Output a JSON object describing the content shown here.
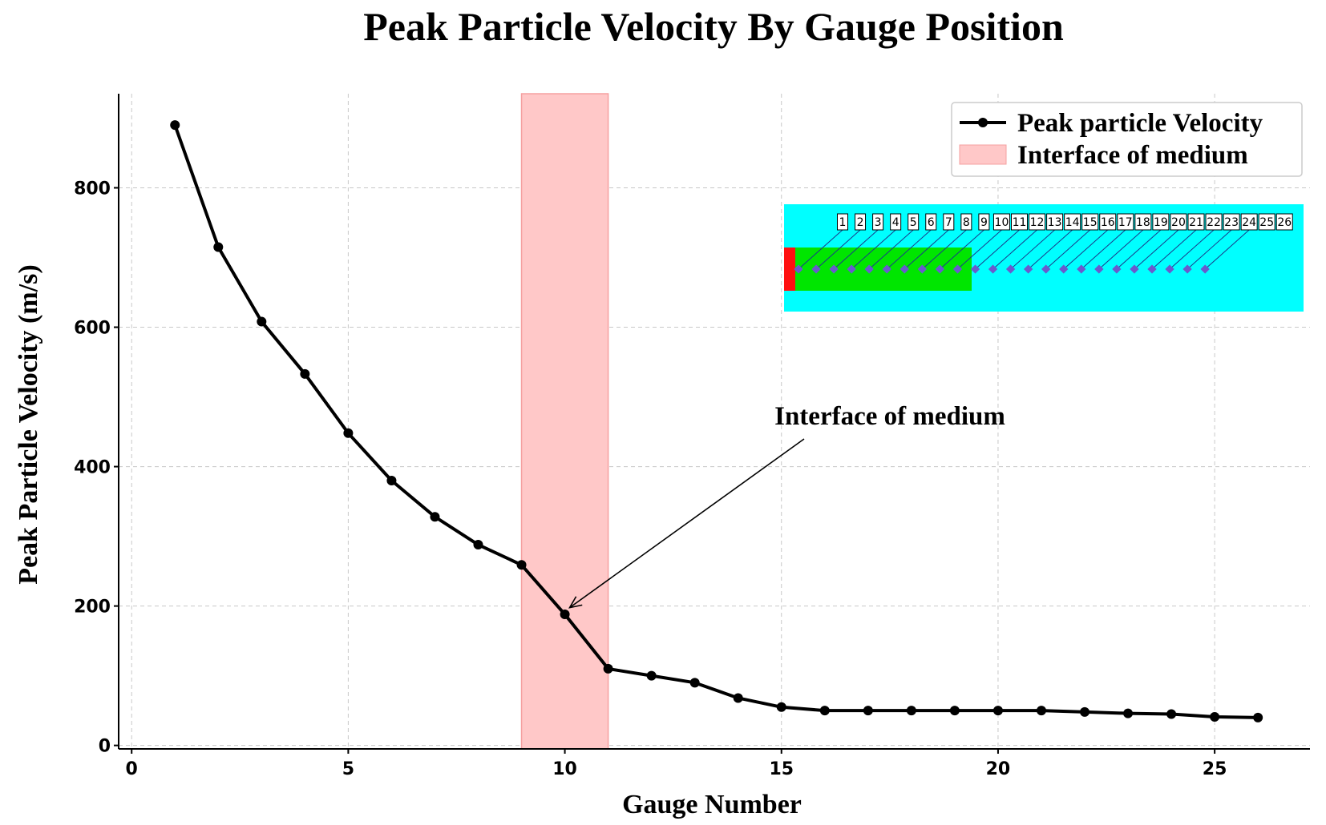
{
  "chart_data": {
    "type": "line",
    "title": "Peak Particle Velocity By Gauge Position",
    "xlabel": "Gauge Number",
    "ylabel": "Peak Particle Velocity (m/s)",
    "xlim": [
      -0.3,
      27.2
    ],
    "ylim": [
      -5,
      935
    ],
    "xticks": [
      0,
      5,
      10,
      15,
      20,
      25
    ],
    "yticks": [
      0,
      200,
      400,
      600,
      800
    ],
    "grid": true,
    "legend_position": "top-right",
    "series": [
      {
        "name": "Peak particle Velocity",
        "color": "#000000",
        "marker": "circle",
        "x": [
          1,
          2,
          3,
          4,
          5,
          6,
          7,
          8,
          9,
          10,
          11,
          12,
          13,
          14,
          15,
          16,
          17,
          18,
          19,
          20,
          21,
          22,
          23,
          24,
          25,
          26
        ],
        "y": [
          890,
          715,
          608,
          533,
          448,
          380,
          328,
          288,
          259,
          188,
          110,
          100,
          90,
          68,
          55,
          50,
          50,
          50,
          50,
          50,
          50,
          48,
          46,
          45,
          41,
          40
        ]
      }
    ],
    "shaded_region": {
      "name": "Interface of medium",
      "x_start": 9,
      "x_end": 11,
      "color": "#ffc8c8",
      "edge_color": "#f5a0a0"
    },
    "annotation": {
      "text": "Interface of medium",
      "target_x": 10,
      "target_y": 200
    },
    "inset": {
      "background_color": "#00ffff",
      "block_color": "#00e600",
      "charge_color": "#ff1010",
      "gauge_marker_color": "#6a5acd",
      "gauge_labels": [
        "1",
        "2",
        "3",
        "4",
        "5",
        "6",
        "7",
        "8",
        "9",
        "10",
        "11",
        "12",
        "13",
        "14",
        "15",
        "16",
        "17",
        "18",
        "19",
        "20",
        "21",
        "22",
        "23",
        "24",
        "25",
        "26"
      ]
    }
  }
}
